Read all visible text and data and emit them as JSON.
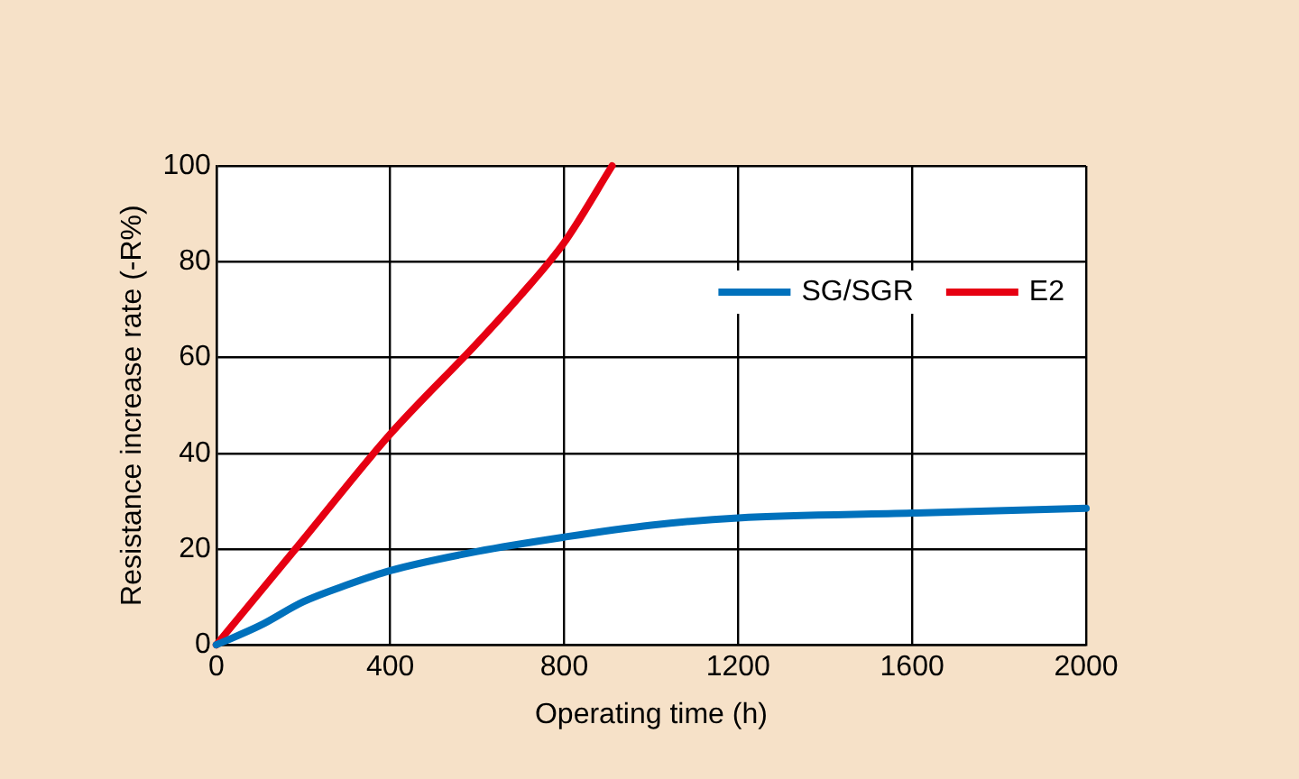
{
  "chart_data": {
    "type": "line",
    "xlabel": "Operating time (h)",
    "ylabel": "Resistance increase rate (-R%)",
    "xlim": [
      0,
      2000
    ],
    "xticks": [
      0,
      400,
      800,
      1200,
      1600,
      2000
    ],
    "ylim": [
      0,
      100
    ],
    "yticks": [
      0,
      20,
      40,
      60,
      80,
      100
    ],
    "grid": true,
    "legend": "top right",
    "marker": "none",
    "line_style": "solid",
    "series": [
      {
        "name": "SG/SGR",
        "color": "#0071bc",
        "x": [
          0,
          100,
          200,
          300,
          400,
          600,
          800,
          1000,
          1200,
          1600,
          2000
        ],
        "values": [
          0,
          4,
          9,
          12.5,
          15.5,
          19.5,
          22.5,
          25,
          26.5,
          27.5,
          28.5
        ]
      },
      {
        "name": "E2",
        "color": "#e60012",
        "x": [
          0,
          200,
          400,
          600,
          700,
          800,
          910
        ],
        "values": [
          0,
          22,
          44,
          63,
          73,
          84,
          100
        ]
      }
    ]
  }
}
